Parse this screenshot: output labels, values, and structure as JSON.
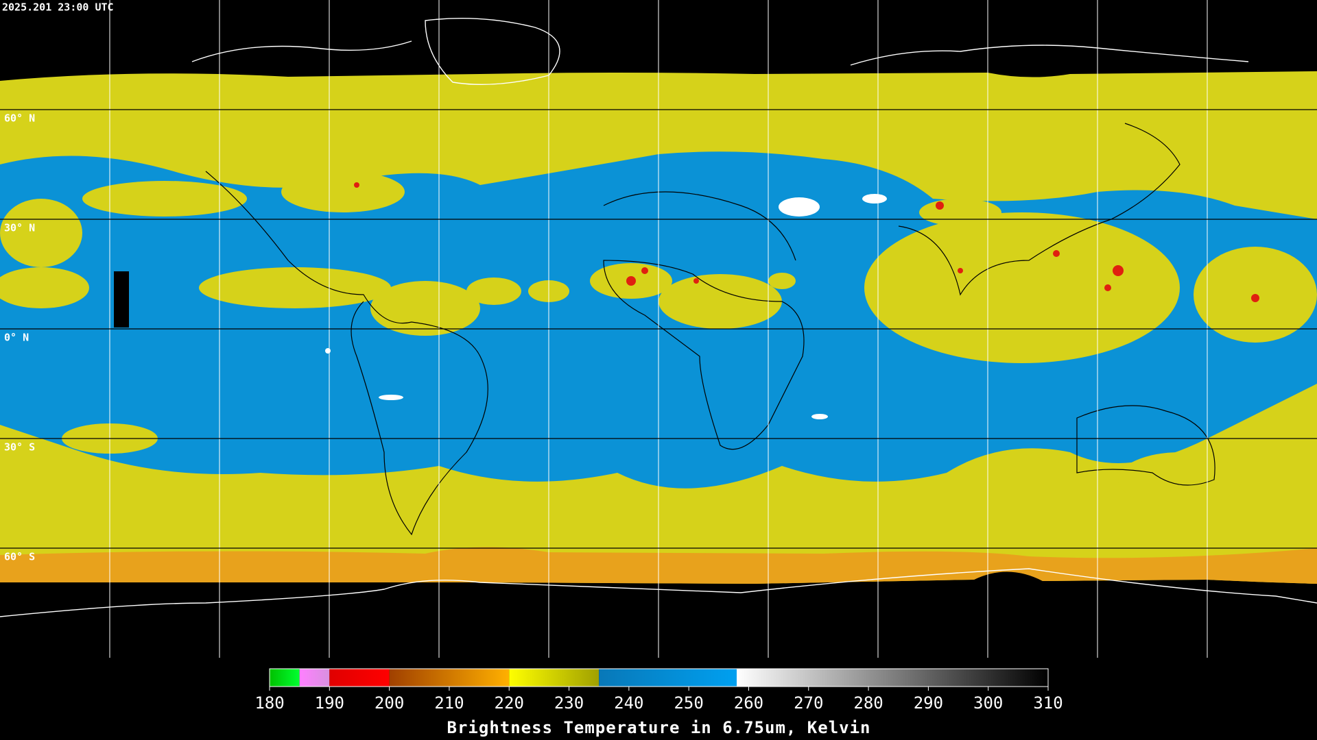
{
  "header": {
    "timestamp": "2025.201 23:00 UTC"
  },
  "map": {
    "lat_lines": [
      {
        "value": 60,
        "label": "60° N"
      },
      {
        "value": 30,
        "label": "30° N"
      },
      {
        "value": 0,
        "label": "0° N"
      },
      {
        "value": -30,
        "label": "30° S"
      },
      {
        "value": -60,
        "label": "60° S"
      }
    ],
    "lon_lines": [
      -150,
      -120,
      -90,
      -60,
      -30,
      0,
      30,
      60,
      90,
      120,
      150
    ],
    "lon_range": [
      -180,
      180
    ],
    "lat_range": [
      90,
      -90
    ]
  },
  "colorbar": {
    "title": "Brightness Temperature in 6.75um, Kelvin",
    "range": [
      180,
      310
    ],
    "ticks": [
      180,
      190,
      200,
      210,
      220,
      230,
      240,
      250,
      260,
      270,
      280,
      290,
      300,
      310
    ],
    "segments": [
      {
        "from": 180,
        "to": 185,
        "colors": [
          "#00c000",
          "#00ff30"
        ]
      },
      {
        "from": 185,
        "to": 190,
        "colors": [
          "#ff80ff",
          "#d890e0"
        ]
      },
      {
        "from": 190,
        "to": 200,
        "colors": [
          "#e00000",
          "#ff0000"
        ]
      },
      {
        "from": 200,
        "to": 220,
        "colors": [
          "#a04000",
          "#ffb000"
        ]
      },
      {
        "from": 220,
        "to": 235,
        "colors": [
          "#ffff00",
          "#a0a000"
        ]
      },
      {
        "from": 235,
        "to": 258,
        "colors": [
          "#0878b8",
          "#00a0f0"
        ]
      },
      {
        "from": 258,
        "to": 310,
        "colors": [
          "#ffffff",
          "#000000"
        ]
      }
    ]
  }
}
